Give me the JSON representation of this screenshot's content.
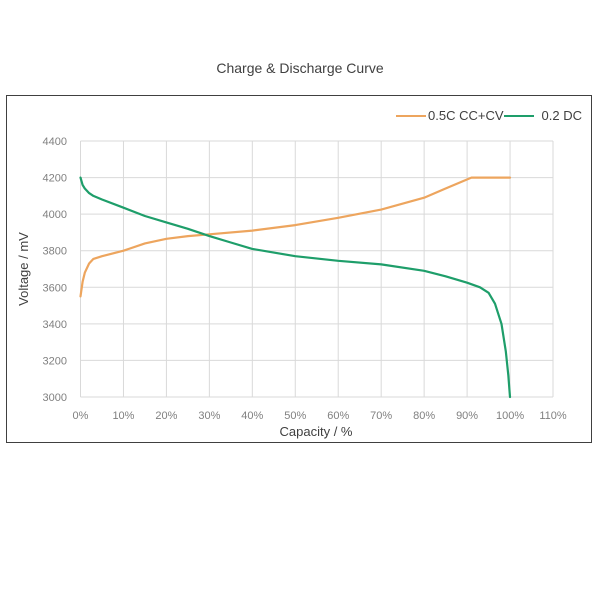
{
  "chart_data": {
    "type": "line",
    "title": "Charge & Discharge Curve",
    "xlabel": "Capacity / %",
    "ylabel": "Voltage / mV",
    "xlim": [
      0,
      110
    ],
    "ylim": [
      3000,
      4400
    ],
    "x_ticks": [
      "0%",
      "10%",
      "20%",
      "30%",
      "40%",
      "50%",
      "60%",
      "70%",
      "80%",
      "90%",
      "100%",
      "110%"
    ],
    "y_ticks": [
      "4400",
      "4200",
      "4000",
      "3800",
      "3600",
      "3400",
      "3200",
      "3000"
    ],
    "grid": true,
    "legend_position": "top-right",
    "series": [
      {
        "name": "0.5C CC+CV",
        "color": "#EDA55E",
        "x": [
          0,
          0.5,
          1,
          2,
          3,
          5,
          10,
          15,
          20,
          25,
          30,
          40,
          50,
          60,
          70,
          80,
          85,
          91,
          95,
          100
        ],
        "y": [
          3550,
          3630,
          3680,
          3730,
          3755,
          3770,
          3800,
          3840,
          3865,
          3880,
          3890,
          3910,
          3940,
          3980,
          4025,
          4090,
          4140,
          4200,
          4200,
          4200
        ]
      },
      {
        "name": "0.2 DC",
        "color": "#1E9E6A",
        "x": [
          0,
          0.5,
          1,
          2,
          3,
          5,
          10,
          15,
          20,
          25,
          30,
          35,
          40,
          50,
          60,
          70,
          80,
          85,
          90,
          93,
          95,
          96.5,
          98,
          99,
          99.6,
          100
        ],
        "y": [
          4200,
          4160,
          4140,
          4115,
          4100,
          4080,
          4035,
          3990,
          3955,
          3920,
          3880,
          3845,
          3810,
          3770,
          3745,
          3725,
          3690,
          3660,
          3625,
          3600,
          3570,
          3510,
          3400,
          3250,
          3120,
          3000
        ]
      }
    ]
  },
  "legend": {
    "items": [
      {
        "label": "0.5C CC+CV",
        "color": "#EDA55E"
      },
      {
        "label": "0.2 DC",
        "color": "#1E9E6A"
      }
    ]
  }
}
